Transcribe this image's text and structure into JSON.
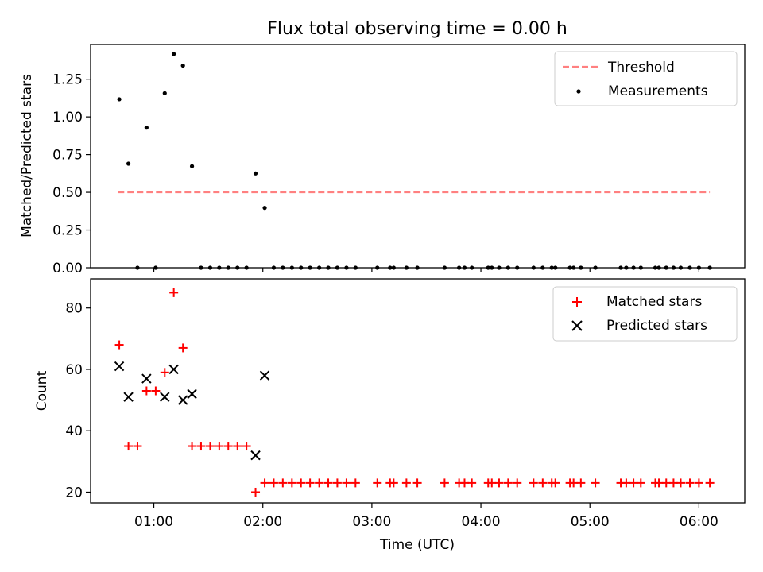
{
  "figure": {
    "title": "Flux total observing time = 0.00 h"
  },
  "chart_data": [
    {
      "type": "scatter",
      "panel": "top",
      "title": "Flux total observing time = 0.00 h",
      "xlabel": "",
      "ylabel": "Matched/Predicted stars",
      "xlim": [
        0.42,
        6.42
      ],
      "ylim": [
        0.0,
        1.48
      ],
      "yticks": [
        0.0,
        0.25,
        0.5,
        0.75,
        1.0,
        1.25
      ],
      "ytick_labels": [
        "0.00",
        "0.25",
        "0.50",
        "0.75",
        "1.00",
        "1.25"
      ],
      "threshold": {
        "name": "Threshold",
        "value": 0.5,
        "x_range": [
          0.67,
          6.1
        ],
        "color": "#ff8080",
        "style": "dashed"
      },
      "legend": {
        "placement": "upper-right",
        "entries": [
          {
            "label": "Threshold",
            "kind": "line",
            "color": "#ff8080"
          },
          {
            "label": "Measurements",
            "kind": "dot",
            "color": "#000000"
          }
        ]
      },
      "series": [
        {
          "name": "Measurements",
          "marker": "dot",
          "color": "#000000",
          "x": [
            0.683,
            0.767,
            0.85,
            0.933,
            1.017,
            1.1,
            1.183,
            1.267,
            1.35,
            1.433,
            1.517,
            1.6,
            1.683,
            1.767,
            1.85,
            1.933,
            2.017,
            2.1,
            2.183,
            2.267,
            2.35,
            2.433,
            2.517,
            2.6,
            2.683,
            2.767,
            2.85,
            3.05,
            3.167,
            3.2,
            3.317,
            3.417,
            3.667,
            3.8,
            3.85,
            3.917,
            4.067,
            4.1,
            4.167,
            4.25,
            4.333,
            4.483,
            4.567,
            4.65,
            4.683,
            4.817,
            4.85,
            4.917,
            5.05,
            5.283,
            5.333,
            5.4,
            5.467,
            5.6,
            5.633,
            5.7,
            5.767,
            5.833,
            5.917,
            6.0,
            6.1
          ],
          "y": [
            1.117,
            0.69,
            0.0,
            0.929,
            0.0,
            1.157,
            1.417,
            1.34,
            0.673,
            0.0,
            0.0,
            0.0,
            0.0,
            0.0,
            0.0,
            0.625,
            0.397,
            0.0,
            0.0,
            0.0,
            0.0,
            0.0,
            0.0,
            0.0,
            0.0,
            0.0,
            0.0,
            0.0,
            0.0,
            0.0,
            0.0,
            0.0,
            0.0,
            0.0,
            0.0,
            0.0,
            0.0,
            0.0,
            0.0,
            0.0,
            0.0,
            0.0,
            0.0,
            0.0,
            0.0,
            0.0,
            0.0,
            0.0,
            0.0,
            0.0,
            0.0,
            0.0,
            0.0,
            0.0,
            0.0,
            0.0,
            0.0,
            0.0,
            0.0,
            0.0,
            0.0
          ]
        }
      ]
    },
    {
      "type": "scatter",
      "panel": "bottom",
      "xlabel": "Time (UTC)",
      "ylabel": "Count",
      "xlim": [
        0.42,
        6.42
      ],
      "ylim": [
        16.5,
        89.5
      ],
      "xticks": [
        1,
        2,
        3,
        4,
        5,
        6
      ],
      "xtick_labels": [
        "01:00",
        "02:00",
        "03:00",
        "04:00",
        "05:00",
        "06:00"
      ],
      "yticks": [
        20,
        40,
        60,
        80
      ],
      "ytick_labels": [
        "20",
        "40",
        "60",
        "80"
      ],
      "legend": {
        "placement": "upper-right",
        "entries": [
          {
            "label": "Matched stars",
            "kind": "plus",
            "color": "#ff0000"
          },
          {
            "label": "Predicted stars",
            "kind": "cross",
            "color": "#000000"
          }
        ]
      },
      "series": [
        {
          "name": "Matched stars",
          "marker": "plus",
          "color": "#ff0000",
          "x": [
            0.683,
            0.767,
            0.85,
            0.933,
            1.017,
            1.1,
            1.183,
            1.267,
            1.35,
            1.433,
            1.517,
            1.6,
            1.683,
            1.767,
            1.85,
            1.933,
            2.017,
            2.1,
            2.183,
            2.267,
            2.35,
            2.433,
            2.517,
            2.6,
            2.683,
            2.767,
            2.85,
            3.05,
            3.167,
            3.2,
            3.317,
            3.417,
            3.667,
            3.8,
            3.85,
            3.917,
            4.067,
            4.1,
            4.167,
            4.25,
            4.333,
            4.483,
            4.567,
            4.65,
            4.683,
            4.817,
            4.85,
            4.917,
            5.05,
            5.283,
            5.333,
            5.4,
            5.467,
            5.6,
            5.633,
            5.7,
            5.767,
            5.833,
            5.917,
            6.0,
            6.1
          ],
          "y": [
            68,
            35,
            35,
            53,
            53,
            59,
            85,
            67,
            35,
            35,
            35,
            35,
            35,
            35,
            35,
            20,
            23,
            23,
            23,
            23,
            23,
            23,
            23,
            23,
            23,
            23,
            23,
            23,
            23,
            23,
            23,
            23,
            23,
            23,
            23,
            23,
            23,
            23,
            23,
            23,
            23,
            23,
            23,
            23,
            23,
            23,
            23,
            23,
            23,
            23,
            23,
            23,
            23,
            23,
            23,
            23,
            23,
            23,
            23,
            23,
            23
          ]
        },
        {
          "name": "Predicted stars",
          "marker": "cross",
          "color": "#000000",
          "x": [
            0.683,
            0.767,
            0.933,
            1.1,
            1.183,
            1.267,
            1.35,
            1.933,
            2.017
          ],
          "y": [
            61,
            51,
            57,
            51,
            60,
            50,
            52,
            32,
            58
          ]
        }
      ]
    }
  ]
}
